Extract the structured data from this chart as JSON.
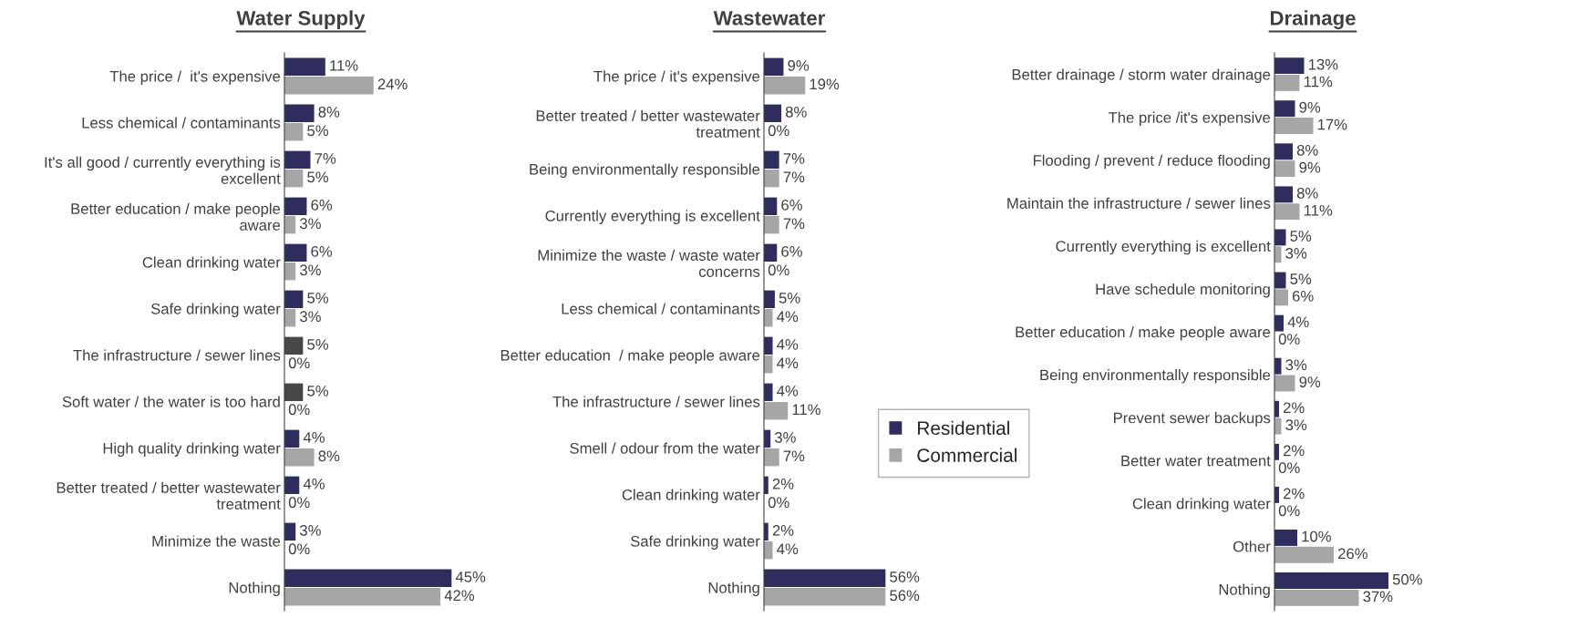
{
  "chart_data": [
    {
      "type": "bar",
      "orientation": "horizontal",
      "title": "Water Supply",
      "legend": false,
      "categories": [
        "The price /  it's expensive",
        "Less chemical / contaminants",
        "It's all good / currently everything is\nexcellent",
        "Better education / make people\naware",
        "Clean drinking water",
        "Safe drinking water",
        "The infrastructure / sewer lines",
        "Soft water / the water is too hard",
        "High quality drinking water",
        "Better treated / better wastewater\ntreatment",
        "Minimize the waste",
        "Nothing"
      ],
      "series": [
        {
          "colors": [
            "#2e2d5e",
            "#2e2d5e",
            "#2e2d5e",
            "#2e2d5e",
            "#2e2d5e",
            "#2e2d5e",
            "#474747",
            "#474747",
            "#2e2d5e",
            "#2e2d5e",
            "#2e2d5e",
            "#2e2d5e"
          ],
          "values": [
            11,
            8,
            7,
            6,
            6,
            5,
            5,
            5,
            4,
            4,
            3,
            45
          ],
          "value_labels": [
            "11%",
            "8%",
            "7%",
            "6%",
            "6%",
            "5%",
            "5%",
            "5%",
            "4%",
            "4%",
            "3%",
            "45%"
          ]
        },
        {
          "color": "#a6a6a6",
          "values": [
            24,
            5,
            5,
            3,
            3,
            3,
            0,
            0,
            8,
            0,
            0,
            42
          ],
          "value_labels": [
            "24%",
            "5%",
            "5%",
            "3%",
            "3%",
            "3%",
            "0%",
            "0%",
            "8%",
            "0%",
            "0%",
            "42%"
          ]
        }
      ]
    },
    {
      "type": "bar",
      "orientation": "horizontal",
      "title": "Wastewater",
      "legend": "right",
      "categories": [
        "The price / it's expensive",
        "Better treated / better wastewater\ntreatment",
        "Being environmentally responsible",
        "Currently everything is excellent",
        "Minimize the waste / waste water\nconcerns",
        "Less chemical / contaminants",
        "Better education  / make people aware",
        "The infrastructure / sewer lines",
        "Smell / odour from the water",
        "Clean drinking water",
        "Safe drinking water",
        "Nothing"
      ],
      "series": [
        {
          "name": "Residential",
          "color": "#2e2d5e",
          "values": [
            9,
            8,
            7,
            6,
            6,
            5,
            4,
            4,
            3,
            2,
            2,
            56
          ],
          "value_labels": [
            "9%",
            "8%",
            "7%",
            "6%",
            "6%",
            "5%",
            "4%",
            "4%",
            "3%",
            "2%",
            "2%",
            "56%"
          ]
        },
        {
          "name": "Commercial",
          "color": "#a6a6a6",
          "values": [
            19,
            0,
            7,
            7,
            0,
            4,
            4,
            11,
            7,
            0,
            4,
            56
          ],
          "value_labels": [
            "19%",
            "0%",
            "7%",
            "7%",
            "0%",
            "4%",
            "4%",
            "11%",
            "7%",
            "0%",
            "4%",
            "56%"
          ]
        }
      ]
    },
    {
      "type": "bar",
      "orientation": "horizontal",
      "title": "Drainage",
      "legend": false,
      "categories": [
        "Better drainage / storm water drainage",
        "The price /it's expensive",
        "Flooding / prevent / reduce flooding",
        "Maintain the infrastructure / sewer lines",
        "Currently everything is excellent",
        "Have schedule monitoring",
        "Better education / make people aware",
        "Being environmentally responsible",
        "Prevent sewer backups",
        "Better water treatment",
        "Clean drinking water",
        "Other",
        "Nothing"
      ],
      "series": [
        {
          "color": "#2e2d5e",
          "values": [
            13,
            9,
            8,
            8,
            5,
            5,
            4,
            3,
            2,
            2,
            2,
            10,
            50
          ],
          "value_labels": [
            "13%",
            "9%",
            "8%",
            "8%",
            "5%",
            "5%",
            "4%",
            "3%",
            "2%",
            "2%",
            "2%",
            "10%",
            "50%"
          ]
        },
        {
          "color": "#a6a6a6",
          "values": [
            11,
            17,
            9,
            11,
            3,
            6,
            0,
            9,
            3,
            0,
            0,
            26,
            37
          ],
          "value_labels": [
            "11%",
            "17%",
            "9%",
            "11%",
            "3%",
            "6%",
            "0%",
            "9%",
            "3%",
            "0%",
            "0%",
            "26%",
            "37%"
          ]
        }
      ]
    }
  ]
}
